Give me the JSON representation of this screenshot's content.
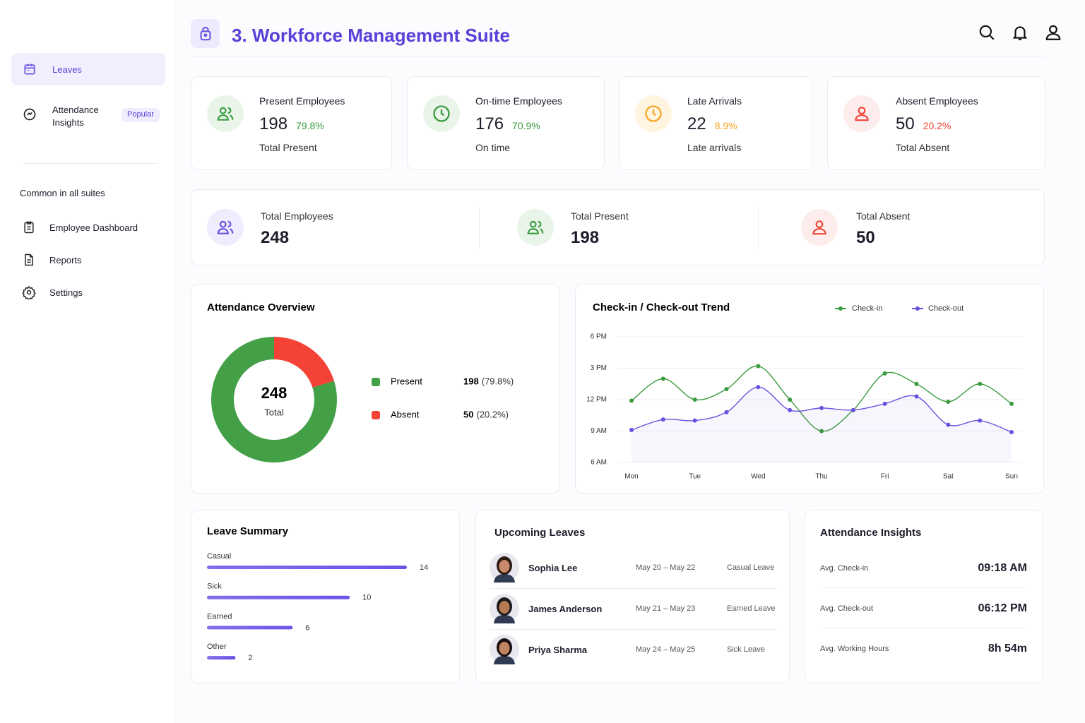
{
  "header": {
    "title": "3. Workforce Management Suite"
  },
  "sidebar": {
    "menu": [
      {
        "label": "Leaves"
      },
      {
        "label": "Attendance Insights",
        "badge": "Popular"
      }
    ],
    "section_title": "Common in all suites",
    "common": [
      "Employee Dashboard",
      "Reports",
      "Settings"
    ]
  },
  "stat_cards": [
    {
      "title": "Present Employees",
      "value": 198,
      "percent": "79.8%",
      "caption": "Total Present"
    },
    {
      "title": "On-time Employees",
      "value": 176,
      "percent": "70.9%",
      "caption": "On time"
    },
    {
      "title": "Late Arrivals",
      "value": 22,
      "percent": "8.9%",
      "caption": "Late arrivals"
    },
    {
      "title": "Absent Employees",
      "value": 50,
      "percent": "20.2%",
      "caption": "Total Absent"
    }
  ],
  "summary": [
    {
      "label": "Total Employees",
      "value": 248
    },
    {
      "label": "Total Present",
      "value": 198
    },
    {
      "label": "Total Absent",
      "value": 50
    }
  ],
  "chart_data": [
    {
      "type": "pie",
      "title": "Attendance Overview",
      "categories": [
        "Present",
        "Absent"
      ],
      "values": [
        198,
        50
      ],
      "shares": [
        "(79.8%)",
        "(20.2%)"
      ],
      "colors": [
        "#43a047",
        "#f44336"
      ],
      "center_value": 248,
      "center_label": "Total"
    },
    {
      "type": "line",
      "title": "Check-in / Check-out Trend",
      "categories": [
        "Mon",
        null,
        "Tue",
        null,
        "Wed",
        null,
        "Thu",
        null,
        "Fri",
        null,
        "Sat",
        null,
        "Sun"
      ],
      "series": [
        {
          "name": "Check-in",
          "color": "#3a9b3f",
          "values": [
            11.9,
            14,
            12,
            13,
            15.2,
            12,
            9,
            11,
            14.5,
            13.5,
            11.8,
            13.5,
            11.6
          ]
        },
        {
          "name": "Check-out",
          "color": "#6a4fe0",
          "values": [
            9.1,
            10.1,
            10,
            10.8,
            13.2,
            11,
            11.2,
            11,
            11.6,
            12.3,
            9.6,
            10,
            8.9
          ]
        }
      ],
      "ylim": [
        6,
        18
      ],
      "yticks": [
        {
          "value": 6,
          "label": "6 AM"
        },
        {
          "value": 9,
          "label": "9 AM"
        },
        {
          "value": 12,
          "label": "12 PM"
        },
        {
          "value": 15,
          "label": "3 PM"
        },
        {
          "value": 18,
          "label": "6 PM"
        }
      ],
      "grid": true
    },
    {
      "type": "bar",
      "title": "Leave Summary",
      "orientation": "horizontal",
      "categories": [
        "Casual",
        "Sick",
        "Earned",
        "Other"
      ],
      "values": [
        14,
        10,
        6,
        2
      ],
      "color": "#6c54e8"
    }
  ],
  "upcoming_leaves": {
    "title": "Upcoming Leaves",
    "rows": [
      {
        "name": "Sophia Lee",
        "dates": "May 20 – May 22",
        "type": "Casual Leave"
      },
      {
        "name": "James Anderson",
        "dates": "May 21 – May 23",
        "type": "Earned Leave"
      },
      {
        "name": "Priya Sharma",
        "dates": "May 24 – May 25",
        "type": "Sick Leave"
      }
    ]
  },
  "insights": {
    "title": "Attendance Insights",
    "rows": [
      {
        "label": "Avg. Check-in",
        "value": "09:18 AM"
      },
      {
        "label": "Avg. Check-out",
        "value": "06:12 PM"
      },
      {
        "label": "Avg. Working Hours",
        "value": "8h 54m"
      }
    ]
  }
}
